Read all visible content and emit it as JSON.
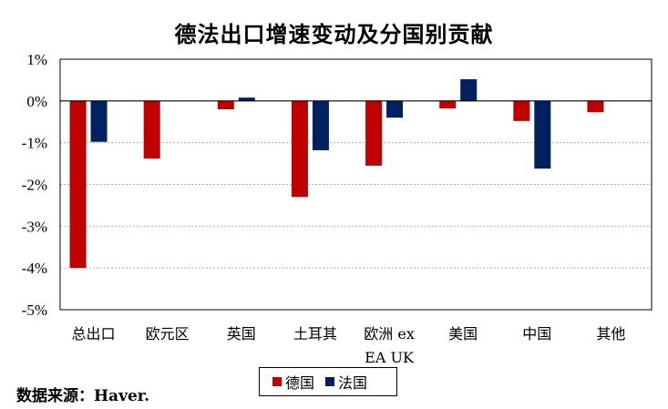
{
  "chart_data": {
    "type": "bar",
    "title": "德法出口增速变动及分国别贡献",
    "categories": [
      "总出口",
      "欧元区",
      "英国",
      "土耳其",
      "欧洲 ex EA UK",
      "美国",
      "中国",
      "其他"
    ],
    "category_lines": [
      [
        "总出口"
      ],
      [
        "欧元区"
      ],
      [
        "英国"
      ],
      [
        "土耳其"
      ],
      [
        "欧洲 ex",
        "EA UK"
      ],
      [
        "美国"
      ],
      [
        "中国"
      ],
      [
        "其他"
      ]
    ],
    "series": [
      {
        "name": "德国",
        "color": "#c00000",
        "values": [
          -4.0,
          -1.38,
          -0.2,
          -2.3,
          -1.55,
          -0.18,
          -0.48,
          -0.27
        ]
      },
      {
        "name": "法国",
        "color": "#002060",
        "values": [
          -0.98,
          null,
          0.08,
          -1.18,
          -0.4,
          0.52,
          -1.62,
          null
        ]
      }
    ],
    "ylim": [
      -5,
      1
    ],
    "yticks": [
      1,
      0,
      -1,
      -2,
      -3,
      -4,
      -5
    ],
    "ytick_labels": [
      "1%",
      "0%",
      "-1%",
      "-2%",
      "-3%",
      "-4%",
      "-5%"
    ],
    "grid": true,
    "legend_position": "bottom-center"
  },
  "source_text": "数据来源：Haver."
}
